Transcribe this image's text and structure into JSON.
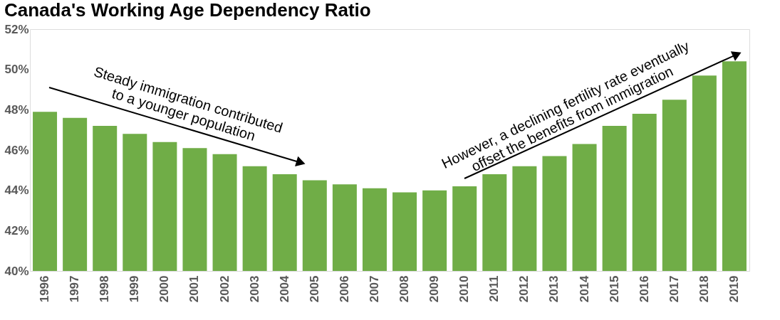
{
  "chart_data": {
    "type": "bar",
    "title": "Canada's Working Age Dependency Ratio",
    "categories": [
      "1996",
      "1997",
      "1998",
      "1999",
      "2000",
      "2001",
      "2002",
      "2003",
      "2004",
      "2005",
      "2006",
      "2007",
      "2008",
      "2009",
      "2010",
      "2011",
      "2012",
      "2013",
      "2014",
      "2015",
      "2016",
      "2017",
      "2018",
      "2019"
    ],
    "series": [
      {
        "color": "#70ad47",
        "values": [
          47.9,
          47.6,
          47.2,
          46.8,
          46.4,
          46.1,
          45.8,
          45.2,
          44.8,
          44.5,
          44.3,
          44.1,
          43.9,
          44.0,
          44.2,
          44.8,
          45.2,
          45.7,
          46.3,
          47.2,
          47.8,
          48.5,
          49.7,
          50.4
        ]
      }
    ],
    "ylim": [
      40,
      52
    ],
    "yticks": [
      {
        "value": 40,
        "label": "40%"
      },
      {
        "value": 42,
        "label": "42%"
      },
      {
        "value": 44,
        "label": "44%"
      },
      {
        "value": 46,
        "label": "46%"
      },
      {
        "value": 48,
        "label": "48%"
      },
      {
        "value": 50,
        "label": "50%"
      },
      {
        "value": 52,
        "label": "52%"
      }
    ],
    "grid": false,
    "annotations": [
      "Steady immigration contributed\nto a younger population",
      "However, a declining fertility rate eventually\noffset the benefits from immigration"
    ]
  }
}
